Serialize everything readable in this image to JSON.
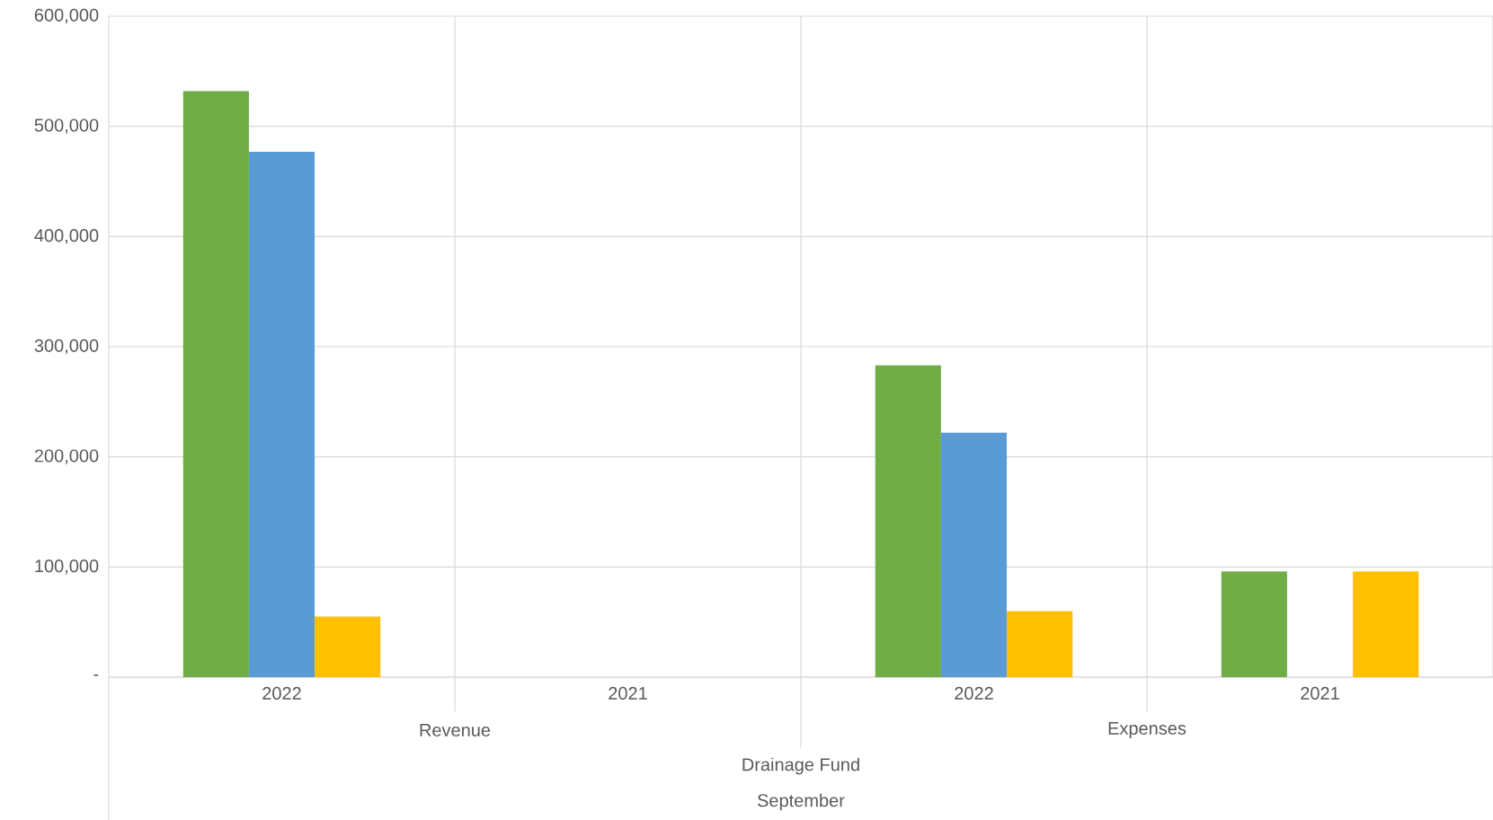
{
  "chart_data": {
    "type": "bar",
    "categories": [
      "2022",
      "2021",
      "2022",
      "2021"
    ],
    "series": [
      {
        "color": "#70ad47",
        "values": [
          532000,
          null,
          283000,
          96000
        ]
      },
      {
        "color": "#5b9bd5",
        "values": [
          477000,
          null,
          222000,
          null
        ]
      },
      {
        "color": "#ffc000",
        "values": [
          55000,
          null,
          60000,
          96000
        ]
      }
    ],
    "ylim": [
      0,
      600000
    ],
    "yticks": [
      {
        "value": 0,
        "label": "-"
      },
      {
        "value": 100000,
        "label": "100,000"
      },
      {
        "value": 200000,
        "label": "200,000"
      },
      {
        "value": 300000,
        "label": "300,000"
      },
      {
        "value": 400000,
        "label": "400,000"
      },
      {
        "value": 500000,
        "label": "500,000"
      },
      {
        "value": 600000,
        "label": "600,000"
      }
    ],
    "grid": true,
    "annotations": [
      "Revenue",
      "Expenses",
      "Drainage Fund",
      "September"
    ]
  }
}
